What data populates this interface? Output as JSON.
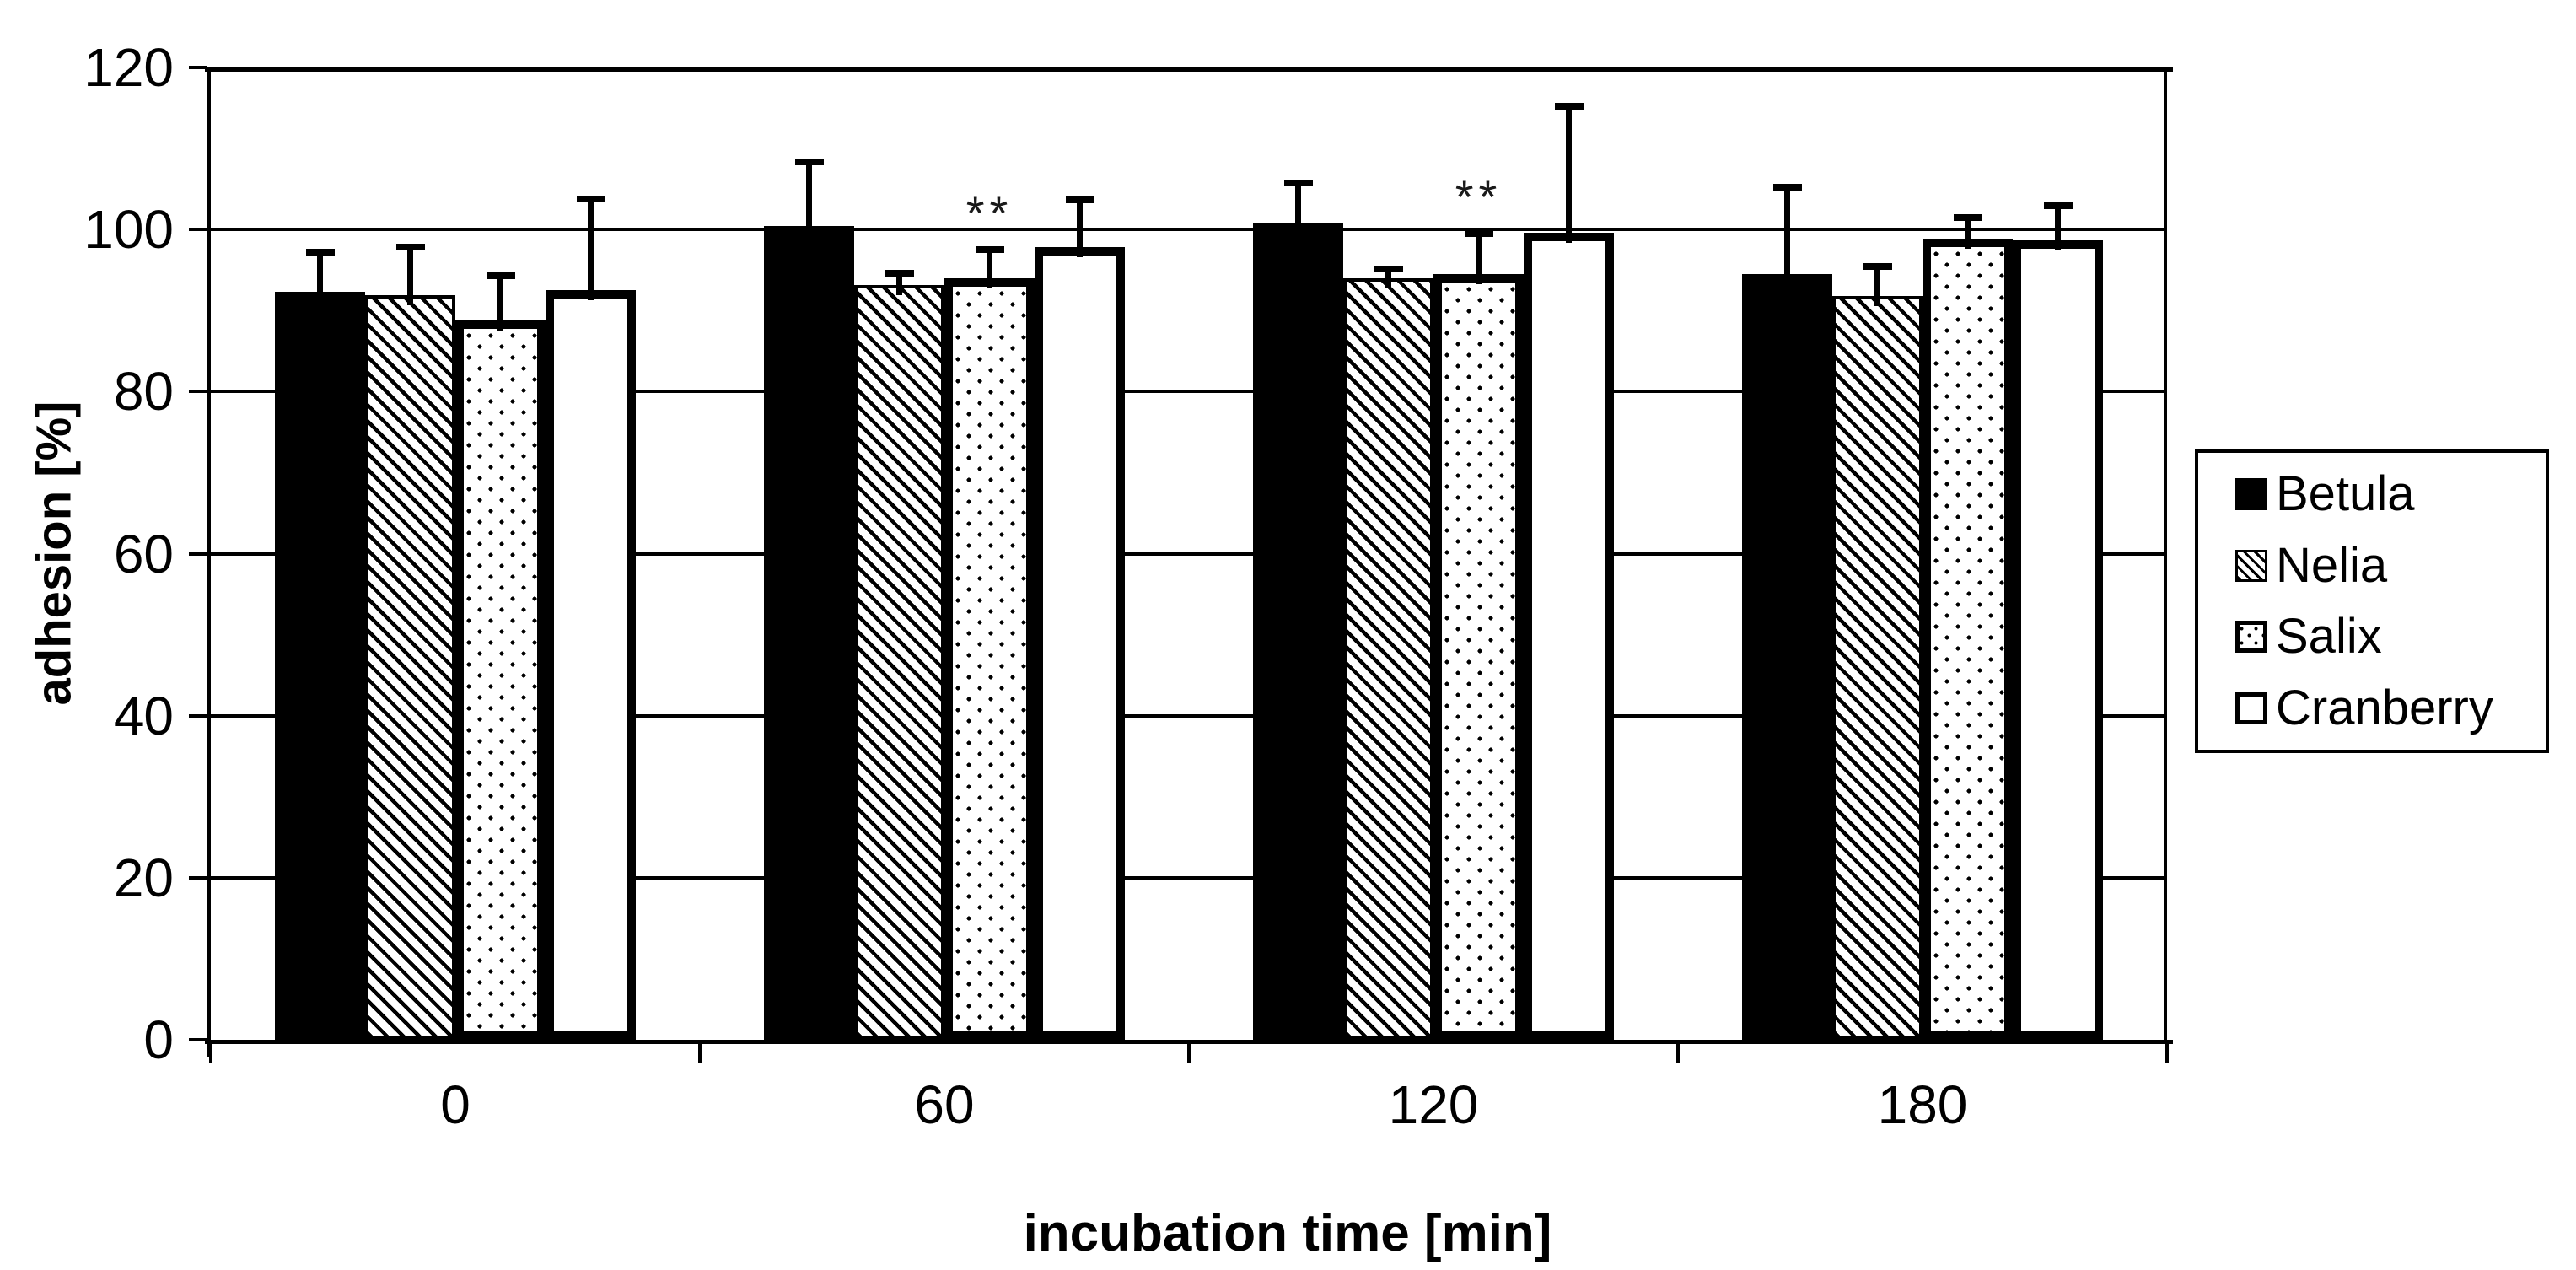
{
  "chart_data": {
    "type": "bar",
    "title": "",
    "xlabel": "incubation time [min]",
    "ylabel": "adhesion [%]",
    "ylim": [
      0,
      120
    ],
    "yticks": [
      0,
      20,
      40,
      60,
      80,
      100,
      120
    ],
    "categories": [
      "0",
      "60",
      "120",
      "180"
    ],
    "grid": true,
    "legend_position": "right",
    "error_bars": "plus-only",
    "series": [
      {
        "name": "Betula",
        "pattern": "solid",
        "values": [
          92.3,
          100.4,
          100.7,
          94.5
        ],
        "errors_plus": [
          5.3,
          8.4,
          5.5,
          11.1
        ],
        "sig": [
          "",
          "",
          "",
          ""
        ]
      },
      {
        "name": "Nelia",
        "pattern": "hatch",
        "values": [
          91.9,
          93.2,
          94.0,
          91.8
        ],
        "errors_plus": [
          6.4,
          1.8,
          1.5,
          4.1
        ],
        "sig": [
          "",
          "",
          "",
          ""
        ]
      },
      {
        "name": "Salix",
        "pattern": "dots",
        "values": [
          88.8,
          94.0,
          94.5,
          98.9
        ],
        "errors_plus": [
          5.9,
          3.9,
          5.4,
          3.0
        ],
        "sig": [
          "",
          "**",
          "**",
          ""
        ]
      },
      {
        "name": "Cranberry",
        "pattern": "plain",
        "values": [
          92.5,
          97.8,
          99.6,
          98.7
        ],
        "errors_plus": [
          11.7,
          6.3,
          16.0,
          4.7
        ],
        "sig": [
          "",
          "",
          "",
          ""
        ]
      }
    ]
  },
  "colors": {
    "foreground": "#000000",
    "background": "#ffffff",
    "sig_marker": "#1a1a1a"
  }
}
